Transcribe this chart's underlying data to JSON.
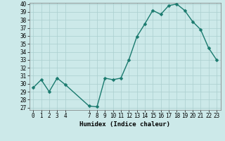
{
  "x": [
    0,
    1,
    2,
    3,
    4,
    7,
    8,
    9,
    10,
    11,
    12,
    13,
    14,
    15,
    16,
    17,
    18,
    19,
    20,
    21,
    22,
    23
  ],
  "y": [
    29.5,
    30.5,
    29.0,
    30.7,
    29.9,
    27.2,
    27.1,
    30.7,
    30.5,
    30.7,
    33.0,
    35.9,
    37.5,
    39.2,
    38.7,
    39.8,
    40.0,
    39.2,
    37.8,
    36.8,
    34.5,
    33.0
  ],
  "line_color": "#1a7a6e",
  "marker_color": "#1a7a6e",
  "bg_color": "#cce9e9",
  "grid_color": "#aacfcf",
  "xlabel": "Humidex (Indice chaleur)",
  "ylim": [
    27,
    40
  ],
  "xlim": [
    -0.5,
    23.5
  ],
  "yticks": [
    27,
    28,
    29,
    30,
    31,
    32,
    33,
    34,
    35,
    36,
    37,
    38,
    39,
    40
  ],
  "xticks": [
    0,
    1,
    2,
    3,
    4,
    7,
    8,
    9,
    10,
    11,
    12,
    13,
    14,
    15,
    16,
    17,
    18,
    19,
    20,
    21,
    22,
    23
  ],
  "font_size_label": 6.5,
  "font_size_tick": 5.5,
  "linewidth": 1.0,
  "markersize": 2.5
}
